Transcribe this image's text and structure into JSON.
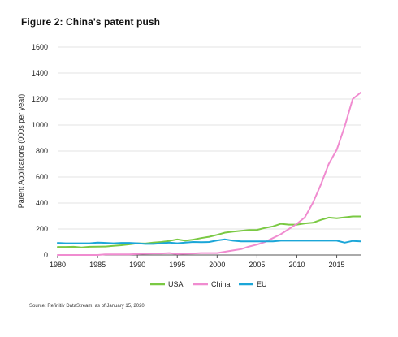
{
  "figure": {
    "title": "Figure 2: China's patent push",
    "source": "Source: Refinitiv DataStream, as of January 15, 2020."
  },
  "chart_data": {
    "type": "line",
    "title": "Figure 2: China's patent push",
    "xlabel": "",
    "ylabel": "Parent Applications (000s per year)",
    "xlim": [
      1980,
      2018
    ],
    "ylim": [
      0,
      1600
    ],
    "xticks": [
      1980,
      1985,
      1990,
      1995,
      2000,
      2005,
      2010,
      2015
    ],
    "yticks": [
      0,
      200,
      400,
      600,
      800,
      1000,
      1200,
      1400,
      1600
    ],
    "grid": "horizontal",
    "legend": "bottom-center",
    "x": [
      1980,
      1981,
      1982,
      1983,
      1984,
      1985,
      1986,
      1987,
      1988,
      1989,
      1990,
      1991,
      1992,
      1993,
      1994,
      1995,
      1996,
      1997,
      1998,
      1999,
      2000,
      2001,
      2002,
      2003,
      2004,
      2005,
      2006,
      2007,
      2008,
      2009,
      2010,
      2011,
      2012,
      2013,
      2014,
      2015,
      2016,
      2017,
      2018
    ],
    "series": [
      {
        "name": "USA",
        "color": "#7ac943",
        "values": [
          62,
          62,
          63,
          58,
          63,
          64,
          65,
          70,
          75,
          82,
          90,
          88,
          95,
          100,
          108,
          120,
          110,
          118,
          130,
          140,
          155,
          172,
          180,
          186,
          192,
          193,
          208,
          220,
          240,
          234,
          234,
          243,
          248,
          270,
          288,
          283,
          290,
          297,
          297
        ]
      },
      {
        "name": "China",
        "color": "#f08cd0",
        "values": [
          0,
          0,
          0,
          0,
          0,
          0,
          5,
          5,
          5,
          5,
          8,
          10,
          12,
          12,
          15,
          8,
          10,
          12,
          15,
          15,
          15,
          25,
          35,
          45,
          65,
          80,
          100,
          130,
          160,
          200,
          240,
          290,
          400,
          540,
          700,
          810,
          990,
          1200,
          1250
        ]
      },
      {
        "name": "EU",
        "color": "#1ba6d8",
        "values": [
          93,
          90,
          90,
          90,
          90,
          95,
          93,
          90,
          93,
          93,
          90,
          85,
          85,
          90,
          95,
          90,
          95,
          100,
          98,
          100,
          112,
          120,
          110,
          105,
          105,
          105,
          105,
          105,
          110,
          110,
          110,
          110,
          110,
          110,
          110,
          110,
          95,
          108,
          105
        ]
      }
    ]
  }
}
